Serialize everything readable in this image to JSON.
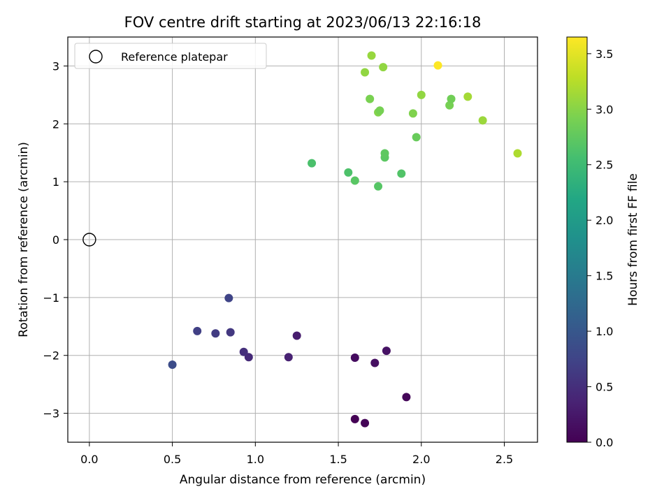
{
  "chart_data": {
    "type": "scatter",
    "title": "FOV centre drift starting at 2023/06/13 22:16:18",
    "xlabel": "Angular distance from reference (arcmin)",
    "ylabel": "Rotation from reference (arcmin)",
    "xlim": [
      -0.13,
      2.7
    ],
    "ylim": [
      -3.5,
      3.5
    ],
    "xticks": [
      0.0,
      0.5,
      1.0,
      1.5,
      2.0,
      2.5
    ],
    "xtick_labels": [
      "0.0",
      "0.5",
      "1.0",
      "1.5",
      "2.0",
      "2.5"
    ],
    "yticks": [
      -3,
      -2,
      -1,
      0,
      1,
      2,
      3
    ],
    "ytick_labels": [
      "−3",
      "−2",
      "−1",
      "0",
      "1",
      "2",
      "3"
    ],
    "grid": true,
    "legend": {
      "placement": "top-left",
      "entries": [
        "Reference platepar"
      ]
    },
    "reference_point": {
      "x": 0.0,
      "y": 0.0
    },
    "colorbar": {
      "label": "Hours from first FF file",
      "colormap": "viridis",
      "range": [
        0.0,
        3.65
      ],
      "ticks": [
        0.0,
        0.5,
        1.0,
        1.5,
        2.0,
        2.5,
        3.0,
        3.5
      ],
      "tick_labels": [
        "0.0",
        "0.5",
        "1.0",
        "1.5",
        "2.0",
        "2.5",
        "3.0",
        "3.5"
      ]
    },
    "points": [
      {
        "x": 1.6,
        "y": -3.1,
        "c": 0.0
      },
      {
        "x": 1.66,
        "y": -3.17,
        "c": 0.03
      },
      {
        "x": 1.91,
        "y": -2.72,
        "c": 0.06
      },
      {
        "x": 1.6,
        "y": -2.04,
        "c": 0.12
      },
      {
        "x": 1.72,
        "y": -2.13,
        "c": 0.15
      },
      {
        "x": 1.79,
        "y": -1.92,
        "c": 0.18
      },
      {
        "x": 1.25,
        "y": -1.66,
        "c": 0.3
      },
      {
        "x": 1.2,
        "y": -2.03,
        "c": 0.35
      },
      {
        "x": 0.96,
        "y": -2.03,
        "c": 0.45
      },
      {
        "x": 0.93,
        "y": -1.94,
        "c": 0.5
      },
      {
        "x": 0.85,
        "y": -1.6,
        "c": 0.6
      },
      {
        "x": 0.76,
        "y": -1.62,
        "c": 0.65
      },
      {
        "x": 0.65,
        "y": -1.58,
        "c": 0.7
      },
      {
        "x": 0.84,
        "y": -1.01,
        "c": 0.75
      },
      {
        "x": 0.5,
        "y": -2.16,
        "c": 0.85
      },
      {
        "x": 1.74,
        "y": 0.92,
        "c": 2.68
      },
      {
        "x": 1.6,
        "y": 1.02,
        "c": 2.7
      },
      {
        "x": 1.56,
        "y": 1.16,
        "c": 2.62
      },
      {
        "x": 1.88,
        "y": 1.14,
        "c": 2.65
      },
      {
        "x": 1.78,
        "y": 1.42,
        "c": 2.72
      },
      {
        "x": 1.78,
        "y": 1.49,
        "c": 2.74
      },
      {
        "x": 1.34,
        "y": 1.32,
        "c": 2.6
      },
      {
        "x": 1.97,
        "y": 1.77,
        "c": 2.8
      },
      {
        "x": 1.95,
        "y": 2.18,
        "c": 2.95
      },
      {
        "x": 1.74,
        "y": 2.2,
        "c": 2.97
      },
      {
        "x": 1.75,
        "y": 2.23,
        "c": 2.9
      },
      {
        "x": 1.69,
        "y": 2.43,
        "c": 2.92
      },
      {
        "x": 2.17,
        "y": 2.32,
        "c": 2.9
      },
      {
        "x": 2.18,
        "y": 2.43,
        "c": 2.86
      },
      {
        "x": 2.0,
        "y": 2.5,
        "c": 3.05
      },
      {
        "x": 2.28,
        "y": 2.47,
        "c": 3.15
      },
      {
        "x": 2.37,
        "y": 2.06,
        "c": 3.1
      },
      {
        "x": 2.58,
        "y": 1.49,
        "c": 3.2
      },
      {
        "x": 1.66,
        "y": 2.89,
        "c": 3.05
      },
      {
        "x": 1.77,
        "y": 2.98,
        "c": 3.05
      },
      {
        "x": 1.7,
        "y": 3.18,
        "c": 3.08
      },
      {
        "x": 2.1,
        "y": 3.01,
        "c": 3.65
      }
    ]
  }
}
